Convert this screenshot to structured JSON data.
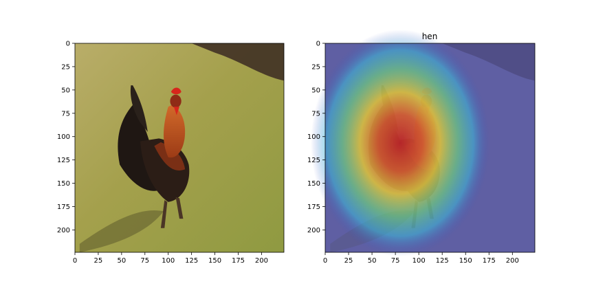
{
  "figure": {
    "panels": [
      {
        "id": "original",
        "title": "",
        "content": "rooster photo",
        "x_ticks": [
          "0",
          "25",
          "50",
          "75",
          "100",
          "125",
          "150",
          "175",
          "200"
        ],
        "y_ticks": [
          "0",
          "25",
          "50",
          "75",
          "100",
          "125",
          "150",
          "175",
          "200"
        ]
      },
      {
        "id": "heatmap",
        "title": "hen",
        "content": "rooster photo with class activation heatmap overlay",
        "x_ticks": [
          "0",
          "25",
          "50",
          "75",
          "100",
          "125",
          "150",
          "175",
          "200"
        ],
        "y_ticks": [
          "0",
          "25",
          "50",
          "75",
          "100",
          "125",
          "150",
          "175",
          "200"
        ]
      }
    ],
    "axis_range": [
      0,
      224
    ],
    "colors": {
      "grass": "#a3a04a",
      "dark_ground": "#3b2a22",
      "rooster_body": "#2b1d16",
      "rooster_neck": "#c0521b",
      "comb": "#d7261c",
      "heat_low": "#3a3fa8",
      "heat_mid": "#2fd3d9",
      "heat_high": "#d8281b"
    }
  }
}
